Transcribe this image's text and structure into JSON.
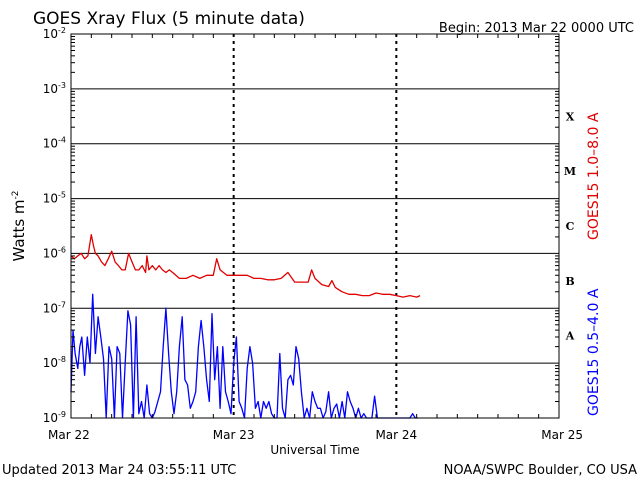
{
  "header": {
    "title": "GOES Xray Flux (5 minute data)",
    "begin": "Begin:  2013 Mar 22 0000 UTC"
  },
  "footer": {
    "updated": "Updated 2013 Mar 24 03:55:11 UTC",
    "credit": "NOAA/SWPC Boulder, CO USA"
  },
  "colors": {
    "long_channel": "#e00000",
    "short_channel": "#0000ff",
    "axes": "#000000"
  },
  "chart_data": {
    "type": "line",
    "xlabel": "Universal Time",
    "ylabel": "Watts m",
    "ylabel_exponent": "-2",
    "yscale": "log",
    "ylim": [
      1e-09,
      0.01
    ],
    "xlim": [
      0,
      72
    ],
    "x_unit": "hours since 2013 Mar 22 0000 UTC",
    "x_ticks": [
      {
        "value": 0,
        "label": "Mar 22"
      },
      {
        "value": 24,
        "label": "Mar 23"
      },
      {
        "value": 48,
        "label": "Mar 24"
      },
      {
        "value": 72,
        "label": "Mar 25"
      }
    ],
    "y_ticks": [
      {
        "value": 1e-09,
        "base": "10",
        "exp": "-9"
      },
      {
        "value": 1e-08,
        "base": "10",
        "exp": "-8"
      },
      {
        "value": 1e-07,
        "base": "10",
        "exp": "-7"
      },
      {
        "value": 1e-06,
        "base": "10",
        "exp": "-6"
      },
      {
        "value": 1e-05,
        "base": "10",
        "exp": "-5"
      },
      {
        "value": 0.0001,
        "base": "10",
        "exp": "-4"
      },
      {
        "value": 0.001,
        "base": "10",
        "exp": "-3"
      },
      {
        "value": 0.01,
        "base": "10",
        "exp": "-2"
      }
    ],
    "flare_classes": [
      {
        "label": "X",
        "lower": 0.0001,
        "upper": 0.001
      },
      {
        "label": "M",
        "lower": 1e-05,
        "upper": 0.0001
      },
      {
        "label": "C",
        "lower": 1e-06,
        "upper": 1e-05
      },
      {
        "label": "B",
        "lower": 1e-07,
        "upper": 1e-06
      },
      {
        "label": "A",
        "lower": 1e-08,
        "upper": 1e-07
      }
    ],
    "series": [
      {
        "name": "GOES15 1.0–8.0 A",
        "color": "#e00000",
        "x": [
          0,
          0.5,
          1.0,
          1.5,
          2.0,
          2.5,
          3.0,
          3.3,
          3.6,
          4.0,
          4.5,
          5.0,
          5.5,
          6.0,
          6.5,
          7.0,
          7.5,
          8.0,
          8.5,
          9.0,
          9.5,
          10.0,
          10.5,
          11.0,
          11.2,
          11.5,
          12.0,
          12.5,
          13.0,
          13.5,
          14.0,
          14.5,
          15.0,
          16.0,
          17.0,
          18.0,
          19.0,
          20.0,
          21.0,
          21.5,
          22.0,
          23.0,
          24.0,
          25.0,
          26.0,
          27.0,
          28.0,
          29.0,
          30.0,
          31.0,
          32.0,
          33.0,
          34.0,
          35.0,
          35.5,
          36.0,
          37.0,
          38.0,
          38.5,
          39.0,
          40.0,
          41.0,
          42.0,
          43.0,
          44.0,
          45.0,
          46.0,
          47.0,
          48.0,
          49.0,
          50.0,
          51.0,
          51.5
        ],
        "y": [
          9e-07,
          8e-07,
          9e-07,
          1e-06,
          8e-07,
          9e-07,
          2.2e-06,
          1.4e-06,
          1e-06,
          9e-07,
          7e-07,
          6e-07,
          8e-07,
          1.1e-06,
          7e-07,
          6e-07,
          5e-07,
          5e-07,
          1e-06,
          7e-07,
          5e-07,
          5e-07,
          6e-07,
          4.5e-07,
          9e-07,
          5e-07,
          6e-07,
          5e-07,
          6e-07,
          5e-07,
          4.5e-07,
          5e-07,
          4.5e-07,
          3.5e-07,
          3.5e-07,
          4e-07,
          3.5e-07,
          4e-07,
          4e-07,
          8e-07,
          5e-07,
          4e-07,
          4e-07,
          4e-07,
          4e-07,
          3.5e-07,
          3.5e-07,
          3.3e-07,
          3.3e-07,
          3.5e-07,
          4.5e-07,
          3e-07,
          3e-07,
          3e-07,
          5e-07,
          3.5e-07,
          2.7e-07,
          2.5e-07,
          3.2e-07,
          2.4e-07,
          2e-07,
          1.8e-07,
          1.8e-07,
          1.7e-07,
          1.7e-07,
          1.9e-07,
          1.8e-07,
          1.8e-07,
          1.7e-07,
          1.6e-07,
          1.7e-07,
          1.6e-07,
          1.7e-07
        ]
      },
      {
        "name": "GOES15 0.5–4.0 A",
        "color": "#0000ff",
        "x": [
          0,
          0.3,
          0.6,
          1.0,
          1.3,
          1.6,
          2.0,
          2.4,
          2.8,
          3.2,
          3.6,
          4.0,
          4.4,
          4.8,
          5.2,
          5.6,
          6.0,
          6.4,
          6.8,
          7.2,
          7.6,
          8.0,
          8.4,
          8.8,
          9.2,
          9.6,
          10.0,
          10.4,
          10.8,
          11.2,
          11.6,
          12.0,
          12.4,
          12.8,
          13.2,
          13.6,
          14.0,
          14.4,
          14.8,
          15.2,
          15.6,
          16.0,
          16.4,
          16.8,
          17.2,
          17.6,
          18.0,
          18.4,
          18.8,
          19.2,
          19.6,
          20.0,
          20.4,
          20.8,
          21.2,
          21.6,
          22.0,
          22.4,
          22.8,
          23.2,
          23.6,
          24.0,
          24.4,
          24.8,
          25.2,
          25.6,
          26.0,
          26.4,
          26.8,
          27.2,
          27.6,
          28.0,
          28.4,
          28.8,
          29.2,
          29.6,
          30.0,
          30.4,
          30.8,
          31.2,
          31.6,
          32.0,
          32.4,
          32.8,
          33.2,
          33.6,
          34.0,
          34.4,
          34.8,
          35.2,
          35.6,
          36.0,
          36.4,
          36.8,
          37.2,
          37.6,
          38.0,
          38.4,
          38.8,
          39.2,
          39.6,
          40.0,
          40.4,
          40.8,
          41.2,
          41.6,
          42.0,
          42.4,
          42.8,
          43.2,
          43.6,
          44.0,
          44.4,
          44.8,
          45.2,
          45.6,
          46.0,
          46.4,
          46.8,
          47.2,
          47.6,
          48.0,
          48.4,
          48.8,
          49.2,
          49.6,
          50.0,
          50.4,
          50.8,
          51.2
        ],
        "y": [
          3e-09,
          4e-08,
          1.5e-08,
          8e-09,
          2e-08,
          3e-08,
          6e-09,
          3e-08,
          1e-08,
          1.8e-07,
          1.5e-08,
          7e-08,
          3e-08,
          1.2e-08,
          1e-09,
          2e-08,
          1.2e-08,
          1e-09,
          2e-08,
          1.5e-08,
          1e-09,
          1e-08,
          9e-08,
          5e-08,
          1e-09,
          7e-08,
          1.2e-09,
          2e-09,
          1e-09,
          4e-09,
          1.2e-09,
          1e-09,
          1.3e-09,
          2e-09,
          3e-09,
          2e-08,
          1e-07,
          1.5e-08,
          3e-09,
          1.2e-09,
          3e-09,
          2e-08,
          7e-08,
          5e-09,
          4e-09,
          1.5e-09,
          2e-09,
          3e-09,
          2e-08,
          6e-08,
          2e-08,
          5e-09,
          2e-09,
          8e-08,
          5e-09,
          2e-08,
          1.5e-09,
          2e-08,
          3e-09,
          2e-09,
          1.2e-09,
          1e-08,
          3e-08,
          2e-09,
          1.5e-09,
          1e-09,
          8e-09,
          2e-08,
          1e-08,
          1.5e-09,
          2e-09,
          1e-09,
          2e-09,
          1.5e-09,
          2e-09,
          1.2e-09,
          1e-09,
          1e-09,
          1.5e-08,
          1.5e-09,
          1e-09,
          5e-09,
          6e-09,
          4e-09,
          2e-08,
          1.2e-08,
          3e-09,
          1e-09,
          1.5e-09,
          1e-09,
          3e-09,
          2e-09,
          1.5e-09,
          1.5e-09,
          1e-09,
          1.3e-09,
          3e-09,
          1e-09,
          1.5e-09,
          1.8e-09,
          1e-09,
          2e-09,
          1e-09,
          3e-09,
          2e-09,
          1.5e-09,
          1e-09,
          1.5e-09,
          1e-09,
          1.2e-09,
          1e-09,
          1e-09,
          1e-09,
          2.5e-09,
          1e-09,
          1e-09,
          1e-09,
          1e-09,
          1e-09,
          1e-09,
          1e-09,
          1e-09,
          1e-09,
          1e-09,
          1e-09,
          1e-09,
          1e-09,
          1.2e-09,
          1e-09,
          1e-09
        ]
      }
    ]
  }
}
